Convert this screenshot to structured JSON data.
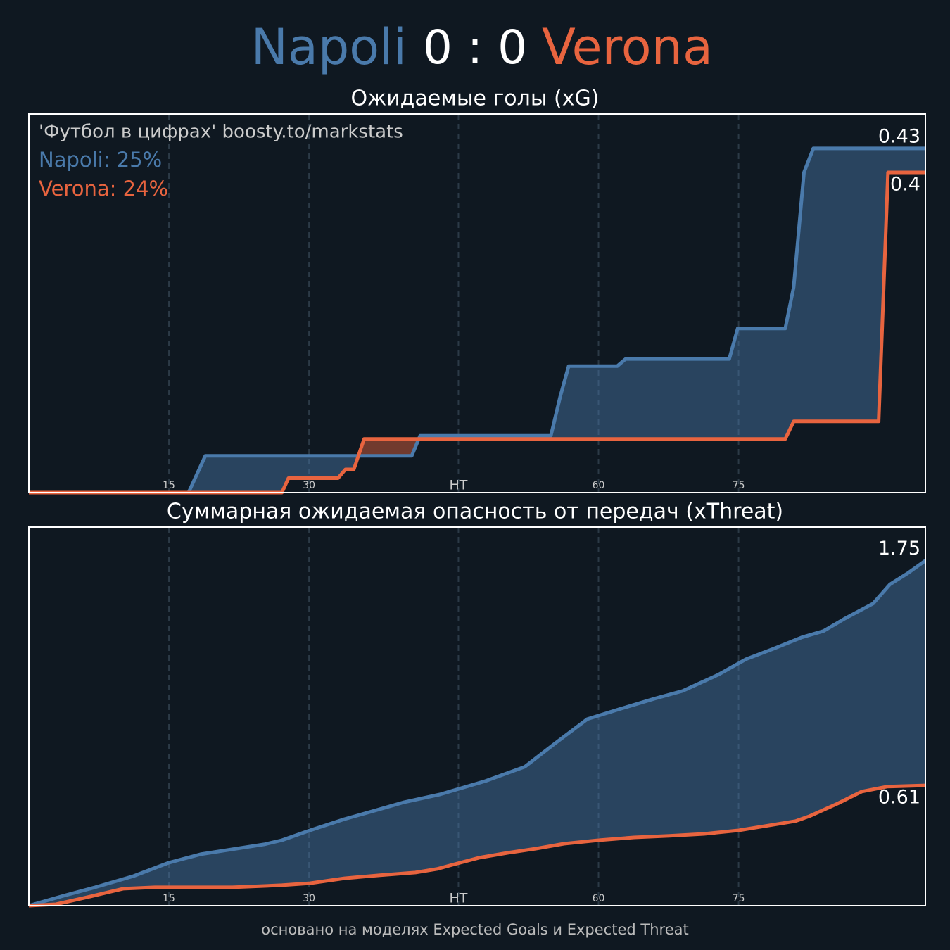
{
  "header": {
    "home": "Napoli",
    "score": "0 : 0",
    "away": "Verona"
  },
  "chart_data": [
    {
      "type": "line",
      "title": "Ожидаемые голы (xG)",
      "fill_between": true,
      "grid": true,
      "annotations": [
        "'Футбол в цифрах' boosty.to/markstats",
        "Napoli: 25%",
        "Verona: 24%"
      ],
      "xlim": [
        0,
        96
      ],
      "ylim": [
        0,
        0.473
      ],
      "xticks": [
        15,
        30,
        {
          "value": 46,
          "label": "HT"
        },
        {
          "value": 61,
          "label": "60"
        },
        {
          "value": 76,
          "label": "75"
        }
      ],
      "series": [
        {
          "color": "#4a7aab",
          "x": [
            0,
            17.1,
            18.9,
            41.0,
            41.9,
            55.9,
            56.9,
            57.8,
            63.0,
            63.9,
            75.0,
            75.9,
            81.0,
            81.9,
            83.0,
            84.0,
            96
          ],
          "values": [
            0,
            0,
            0.046,
            0.046,
            0.071,
            0.071,
            0.12,
            0.158,
            0.158,
            0.167,
            0.167,
            0.205,
            0.205,
            0.257,
            0.4,
            0.43,
            0.43
          ]
        },
        {
          "color": "#e8643f",
          "x": [
            0,
            27.1,
            27.8,
            33.1,
            33.9,
            34.8,
            35.9,
            81.0,
            81.9,
            91.0,
            92.0,
            96
          ],
          "values": [
            0,
            0,
            0.018,
            0.018,
            0.029,
            0.029,
            0.067,
            0.067,
            0.089,
            0.089,
            0.4,
            0.4
          ]
        }
      ]
    },
    {
      "type": "line",
      "title": "Суммарная ожидаемая опасность от передач (xThreat)",
      "fill_between": true,
      "grid": true,
      "xlim": [
        0,
        96
      ],
      "ylim": [
        0,
        1.92
      ],
      "xticks": [
        15,
        30,
        {
          "value": 46,
          "label": "HT"
        },
        {
          "value": 61,
          "label": "60"
        },
        {
          "value": 76,
          "label": "75"
        }
      ],
      "series": [
        {
          "color": "#4a7aab",
          "x": [
            0,
            3.7,
            7.1,
            11.2,
            15,
            18.4,
            21.8,
            25.2,
            27.1,
            30.1,
            33.8,
            36.8,
            40.2,
            44.0,
            48.9,
            53.1,
            56.4,
            59.8,
            63.2,
            67.0,
            70.0,
            73.8,
            76.8,
            79.8,
            82.8,
            85.1,
            87.3,
            90.4,
            92.2,
            94.1,
            96
          ],
          "values": [
            0,
            0.05,
            0.093,
            0.15,
            0.218,
            0.261,
            0.286,
            0.311,
            0.332,
            0.382,
            0.439,
            0.479,
            0.525,
            0.564,
            0.632,
            0.704,
            0.825,
            0.946,
            0.996,
            1.05,
            1.089,
            1.171,
            1.25,
            1.304,
            1.361,
            1.393,
            1.454,
            1.532,
            1.629,
            1.686,
            1.75
          ]
        },
        {
          "color": "#e8643f",
          "x": [
            0,
            2.9,
            5.9,
            10.1,
            13.5,
            21.8,
            27.1,
            30.1,
            33.8,
            37.6,
            41.4,
            43.7,
            45.9,
            48.2,
            51.3,
            54.3,
            57.3,
            61.0,
            64.8,
            68.6,
            72.3,
            76.0,
            79.8,
            82.1,
            83.6,
            86.6,
            89.2,
            91.9,
            96
          ],
          "values": [
            0,
            0.007,
            0.039,
            0.086,
            0.093,
            0.093,
            0.104,
            0.114,
            0.139,
            0.154,
            0.168,
            0.186,
            0.214,
            0.243,
            0.268,
            0.289,
            0.314,
            0.332,
            0.346,
            0.354,
            0.364,
            0.382,
            0.411,
            0.429,
            0.454,
            0.518,
            0.579,
            0.604,
            0.61
          ]
        }
      ]
    }
  ],
  "footer": "основано на моделях Expected Goals и Expected Threat"
}
